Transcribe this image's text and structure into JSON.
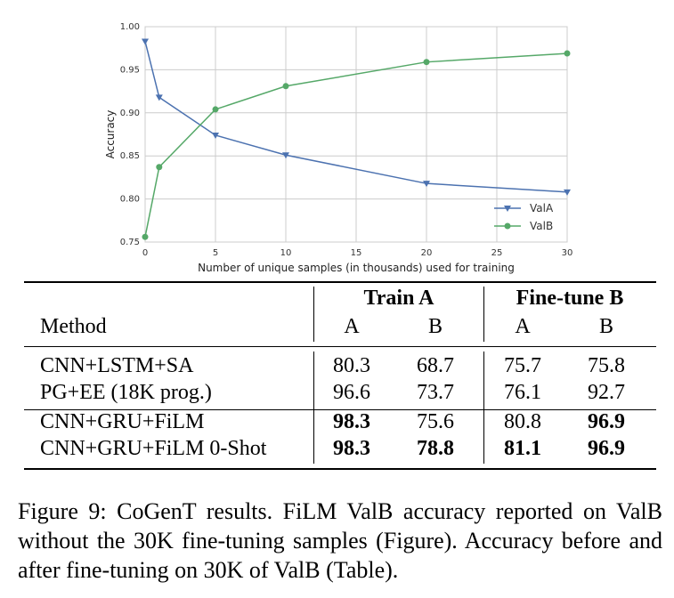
{
  "chart_data": {
    "type": "line",
    "title": "",
    "xlabel": "Number of unique samples (in thousands) used for training",
    "ylabel": "Accuracy",
    "xlim": [
      0,
      30
    ],
    "ylim": [
      0.75,
      1.0
    ],
    "xticks": [
      "0",
      "5",
      "10",
      "15",
      "20",
      "25",
      "30"
    ],
    "yticks": [
      "0.75",
      "0.80",
      "0.85",
      "0.90",
      "0.95",
      "1.00"
    ],
    "grid": true,
    "legend_position": "bottom-right",
    "series": [
      {
        "name": "ValA",
        "color": "#4c72b0",
        "marker": "triangle-down",
        "x": [
          0,
          1,
          5,
          10,
          20,
          30
        ],
        "y": [
          0.983,
          0.918,
          0.874,
          0.851,
          0.818,
          0.808
        ]
      },
      {
        "name": "ValB",
        "color": "#55a868",
        "marker": "circle",
        "x": [
          0,
          1,
          5,
          10,
          20,
          30
        ],
        "y": [
          0.756,
          0.837,
          0.904,
          0.931,
          0.959,
          0.969
        ]
      }
    ]
  },
  "table": {
    "group_headers": [
      "Train A",
      "Fine-tune B"
    ],
    "method_header": "Method",
    "sub_headers": [
      "A",
      "B",
      "A",
      "B"
    ],
    "rows": [
      {
        "method": "CNN+LSTM+SA",
        "values": [
          "80.3",
          "68.7",
          "75.7",
          "75.8"
        ]
      },
      {
        "method": "PG+EE (18K prog.)",
        "values": [
          "96.6",
          "73.7",
          "76.1",
          "92.7"
        ]
      },
      {
        "method": "CNN+GRU+FiLM",
        "values": [
          "98.3",
          "75.6",
          "80.8",
          "96.9"
        ]
      },
      {
        "method": "CNN+GRU+FiLM 0-Shot",
        "values": [
          "98.3",
          "78.8",
          "81.1",
          "96.9"
        ]
      }
    ]
  },
  "caption": "Figure 9: CoGenT results. FiLM ValB accuracy reported on ValB without the 30K fine-tuning samples (Figure). Accuracy before and after fine-tuning on 30K of ValB (Table)."
}
